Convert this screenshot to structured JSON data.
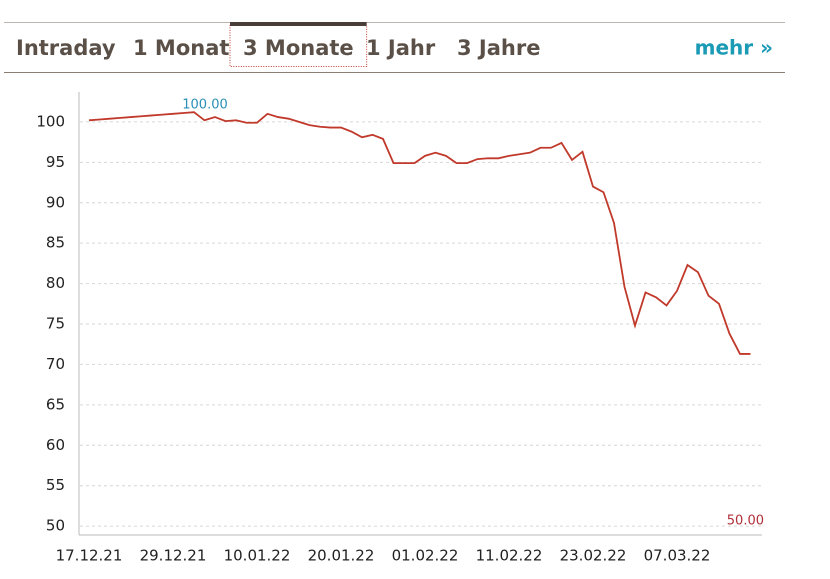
{
  "tabs": [
    "Intraday",
    "1 Monat",
    "3 Monate",
    "1 Jahr",
    "3 Jahre"
  ],
  "active_tab": 2,
  "more_link": "mehr »",
  "chart_data": {
    "type": "line",
    "categories": [
      "17.12.21",
      null,
      null,
      null,
      null,
      null,
      null,
      null,
      "29.12.21",
      null,
      null,
      null,
      null,
      null,
      null,
      null,
      "10.01.22",
      null,
      null,
      null,
      null,
      null,
      null,
      null,
      "20.01.22",
      null,
      null,
      null,
      null,
      null,
      null,
      null,
      "01.02.22",
      null,
      null,
      null,
      null,
      null,
      null,
      null,
      "11.02.22",
      null,
      null,
      null,
      null,
      null,
      null,
      null,
      "23.02.22",
      null,
      null,
      null,
      null,
      null,
      null,
      null,
      "07.03.22",
      null,
      null,
      null,
      null,
      null,
      null,
      null
    ],
    "series": [
      {
        "color": "#c0392b",
        "values": [
          100.2,
          100.3,
          100.4,
          100.5,
          100.6,
          100.7,
          100.8,
          100.9,
          101.0,
          101.1,
          101.2,
          100.2,
          100.6,
          100.1,
          100.2,
          99.9,
          99.9,
          101.0,
          100.6,
          100.4,
          100.0,
          99.6,
          99.4,
          99.3,
          99.3,
          98.8,
          98.1,
          98.4,
          97.9,
          94.9,
          94.9,
          94.9,
          95.8,
          96.2,
          95.8,
          94.9,
          94.9,
          95.4,
          95.5,
          95.5,
          95.8,
          96.0,
          96.2,
          96.8,
          96.8,
          97.4,
          95.3,
          96.3,
          92.0,
          91.3,
          87.5,
          79.6,
          74.8,
          78.9,
          78.3,
          77.3,
          79.1,
          82.3,
          81.4,
          78.5,
          77.5,
          73.8,
          71.3,
          71.3
        ]
      }
    ],
    "ylim": [
      48.9,
      103.7
    ],
    "yticks": [
      50,
      55,
      60,
      65,
      70,
      75,
      80,
      85,
      90,
      95,
      100
    ],
    "grid": true,
    "annotations": [
      {
        "text": "100.00",
        "color": "#2a8fb5"
      },
      {
        "text": "50.00",
        "color": "#b0303a"
      }
    ]
  }
}
